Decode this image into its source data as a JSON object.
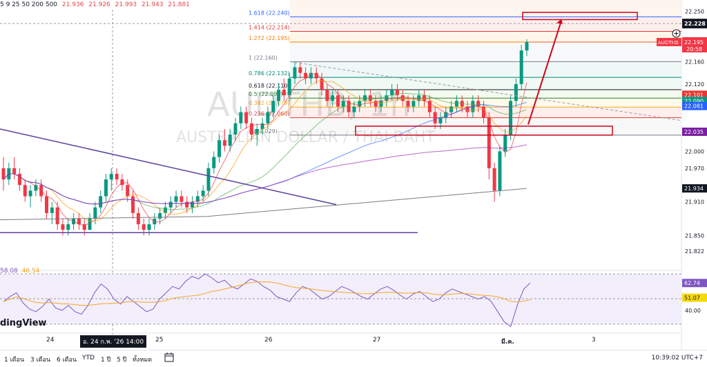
{
  "legend": {
    "prefix": "5 9 25 50 200 500",
    "values": [
      "21.936",
      "21.926",
      "21.993",
      "21.943",
      "21.881"
    ]
  },
  "watermark": {
    "symbol": "AUDTHB, 1h",
    "name": "AUSTRALIAN DOLLAR / THAI BAHT"
  },
  "fib_levels": [
    {
      "label": "1.618 (22.240)",
      "color": "#2962ff"
    },
    {
      "label": "1.414 (22.214)",
      "color": "#e53935"
    },
    {
      "label": "1.272 (22.195)",
      "color": "#f57c00"
    },
    {
      "label": "1 (22.160)",
      "color": "#787b86"
    },
    {
      "label": "0.786 (22.132)",
      "color": "#00897b"
    },
    {
      "label": "0.618 (22.110)",
      "color": "#131722"
    },
    {
      "label": "0.5 (22.095)",
      "color": "#2e7d32"
    },
    {
      "label": "0.382 (22.079)",
      "color": "#f9a825"
    },
    {
      "label": "0.236 (22.060)",
      "color": "#e53935"
    },
    {
      "label": "0 (22.029)",
      "color": "#787b86"
    }
  ],
  "price_axis": {
    "ticks": [
      "22.250",
      "22.160",
      "22.120",
      "22.000",
      "21.970",
      "21.910",
      "21.850",
      "21.822"
    ],
    "cursor_label": "22.228",
    "symbol_tag": "AUDTHB",
    "last_price": "22.195",
    "countdown": "20:58",
    "badges": [
      {
        "text": "22.101",
        "color": "#e53935"
      },
      {
        "text": "22.090",
        "color": "#089981"
      },
      {
        "text": "22.081",
        "color": "#2962ff"
      },
      {
        "text": "22.035",
        "color": "#7b1fa2"
      },
      {
        "text": "21.934",
        "color": "#131722"
      }
    ]
  },
  "rsi": {
    "legend_values": [
      "58.08",
      "46.54"
    ],
    "axis_ticks": [
      "40.00"
    ],
    "badges": [
      {
        "text": "62.74",
        "color": "#7e57c2"
      },
      {
        "text": "51.07",
        "color": "#f5d90a"
      }
    ]
  },
  "time_axis": {
    "labels": [
      "24",
      "25",
      "26",
      "27",
      "มี.ค.",
      "3"
    ],
    "highlight": "อ. 24 ก.พ. '26  14:00"
  },
  "brand": "dingView",
  "toolbar": {
    "ranges": [
      "1 เดือน",
      "3 เดือน",
      "6 เดือน",
      "YTD",
      "1 ปี",
      "5 ปี",
      "ทั้งหมด"
    ],
    "clock": "10:39:02 UTC+7"
  },
  "colors": {
    "up": "#089981",
    "down": "#f23645",
    "rsi": "#7e57c2",
    "rsi_ma": "#f5a623",
    "arrow": "#d0021b"
  },
  "chart_data": {
    "type": "candlestick",
    "title": "AUDTHB, 1h",
    "ylim": [
      21.8,
      22.27
    ],
    "candles": [
      [
        21.97,
        21.99,
        21.93,
        21.95
      ],
      [
        21.95,
        21.98,
        21.94,
        21.97
      ],
      [
        21.97,
        21.99,
        21.95,
        21.96
      ],
      [
        21.96,
        21.97,
        21.93,
        21.94
      ],
      [
        21.94,
        21.95,
        21.91,
        21.92
      ],
      [
        21.92,
        21.94,
        21.9,
        21.93
      ],
      [
        21.93,
        21.95,
        21.92,
        21.94
      ],
      [
        21.94,
        21.95,
        21.91,
        21.92
      ],
      [
        21.92,
        21.93,
        21.88,
        21.89
      ],
      [
        21.89,
        21.91,
        21.87,
        21.9
      ],
      [
        21.9,
        21.91,
        21.86,
        21.87
      ],
      [
        21.87,
        21.88,
        21.85,
        21.86
      ],
      [
        21.86,
        21.88,
        21.85,
        21.87
      ],
      [
        21.87,
        21.89,
        21.86,
        21.88
      ],
      [
        21.88,
        21.89,
        21.86,
        21.87
      ],
      [
        21.87,
        21.88,
        21.85,
        21.86
      ],
      [
        21.86,
        21.89,
        21.86,
        21.88
      ],
      [
        21.88,
        21.91,
        21.87,
        21.9
      ],
      [
        21.9,
        21.93,
        21.89,
        21.92
      ],
      [
        21.92,
        21.96,
        21.91,
        21.95
      ],
      [
        21.95,
        21.97,
        21.93,
        21.96
      ],
      [
        21.96,
        21.97,
        21.94,
        21.95
      ],
      [
        21.95,
        21.96,
        21.93,
        21.94
      ],
      [
        21.94,
        21.95,
        21.91,
        21.92
      ],
      [
        21.92,
        21.93,
        21.88,
        21.89
      ],
      [
        21.89,
        21.9,
        21.86,
        21.87
      ],
      [
        21.87,
        21.88,
        21.85,
        21.86
      ],
      [
        21.86,
        21.88,
        21.85,
        21.87
      ],
      [
        21.87,
        21.89,
        21.86,
        21.88
      ],
      [
        21.88,
        21.9,
        21.87,
        21.89
      ],
      [
        21.89,
        21.91,
        21.88,
        21.9
      ],
      [
        21.9,
        21.92,
        21.89,
        21.91
      ],
      [
        21.91,
        21.93,
        21.9,
        21.92
      ],
      [
        21.92,
        21.93,
        21.9,
        21.91
      ],
      [
        21.91,
        21.92,
        21.89,
        21.9
      ],
      [
        21.9,
        21.92,
        21.89,
        21.91
      ],
      [
        21.91,
        21.93,
        21.9,
        21.92
      ],
      [
        21.92,
        21.94,
        21.91,
        21.93
      ],
      [
        21.93,
        21.98,
        21.92,
        21.97
      ],
      [
        21.97,
        22.0,
        21.96,
        21.99
      ],
      [
        21.99,
        22.03,
        21.98,
        22.02
      ],
      [
        22.02,
        22.04,
        22.0,
        22.01
      ],
      [
        22.01,
        22.04,
        22.0,
        22.03
      ],
      [
        22.03,
        22.06,
        22.02,
        22.05
      ],
      [
        22.05,
        22.08,
        22.04,
        22.07
      ],
      [
        22.07,
        22.08,
        22.04,
        22.05
      ],
      [
        22.05,
        22.06,
        22.02,
        22.03
      ],
      [
        22.03,
        22.05,
        22.01,
        22.04
      ],
      [
        22.04,
        22.06,
        22.03,
        22.05
      ],
      [
        22.05,
        22.08,
        22.04,
        22.07
      ],
      [
        22.07,
        22.1,
        22.06,
        22.09
      ],
      [
        22.09,
        22.12,
        22.08,
        22.11
      ],
      [
        22.11,
        22.13,
        22.09,
        22.1
      ],
      [
        22.1,
        22.14,
        22.09,
        22.13
      ],
      [
        22.13,
        22.16,
        22.12,
        22.15
      ],
      [
        22.15,
        22.16,
        22.13,
        22.14
      ],
      [
        22.14,
        22.15,
        22.12,
        22.13
      ],
      [
        22.13,
        22.15,
        22.12,
        22.14
      ],
      [
        22.14,
        22.15,
        22.12,
        22.13
      ],
      [
        22.13,
        22.14,
        22.1,
        22.11
      ],
      [
        22.11,
        22.12,
        22.08,
        22.09
      ],
      [
        22.09,
        22.11,
        22.08,
        22.1
      ],
      [
        22.1,
        22.11,
        22.07,
        22.08
      ],
      [
        22.08,
        22.1,
        22.07,
        22.09
      ],
      [
        22.09,
        22.1,
        22.06,
        22.07
      ],
      [
        22.07,
        22.09,
        22.06,
        22.08
      ],
      [
        22.08,
        22.1,
        22.07,
        22.09
      ],
      [
        22.09,
        22.11,
        22.08,
        22.1
      ],
      [
        22.1,
        22.11,
        22.08,
        22.09
      ],
      [
        22.09,
        22.1,
        22.07,
        22.08
      ],
      [
        22.08,
        22.1,
        22.07,
        22.09
      ],
      [
        22.09,
        22.11,
        22.08,
        22.1
      ],
      [
        22.1,
        22.12,
        22.09,
        22.11
      ],
      [
        22.11,
        22.12,
        22.09,
        22.1
      ],
      [
        22.1,
        22.11,
        22.08,
        22.09
      ],
      [
        22.09,
        22.1,
        22.07,
        22.08
      ],
      [
        22.08,
        22.1,
        22.07,
        22.09
      ],
      [
        22.09,
        22.11,
        22.08,
        22.1
      ],
      [
        22.1,
        22.11,
        22.08,
        22.09
      ],
      [
        22.09,
        22.1,
        22.06,
        22.07
      ],
      [
        22.07,
        22.08,
        22.04,
        22.05
      ],
      [
        22.05,
        22.07,
        22.04,
        22.06
      ],
      [
        22.06,
        22.08,
        22.05,
        22.07
      ],
      [
        22.07,
        22.09,
        22.06,
        22.08
      ],
      [
        22.08,
        22.1,
        22.07,
        22.09
      ],
      [
        22.09,
        22.1,
        22.07,
        22.08
      ],
      [
        22.08,
        22.09,
        22.06,
        22.07
      ],
      [
        22.07,
        22.1,
        22.06,
        22.09
      ],
      [
        22.09,
        22.1,
        22.07,
        22.08
      ],
      [
        22.08,
        22.09,
        22.05,
        22.06
      ],
      [
        22.06,
        22.07,
        21.95,
        21.97
      ],
      [
        21.97,
        21.98,
        21.91,
        21.93
      ],
      [
        21.93,
        22.01,
        21.92,
        22.0
      ],
      [
        22.0,
        22.04,
        21.99,
        22.03
      ],
      [
        22.03,
        22.1,
        22.02,
        22.09
      ],
      [
        22.09,
        22.13,
        22.08,
        22.12
      ],
      [
        22.12,
        22.19,
        22.11,
        22.18
      ],
      [
        22.18,
        22.2,
        22.17,
        22.195
      ]
    ]
  }
}
